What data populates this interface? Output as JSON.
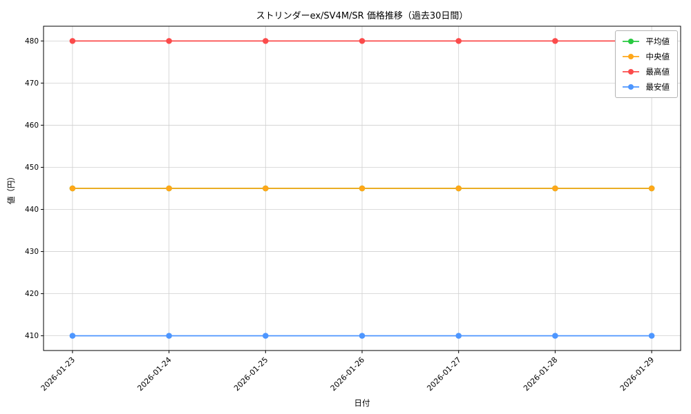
{
  "figure": {
    "background": "#ffffff"
  },
  "chart_data": {
    "type": "line",
    "title": "ストリンダーex/SV4M/SR 価格推移（過去30日間）",
    "xlabel": "日付",
    "ylabel": "値（円）",
    "x": [
      "2026-01-23",
      "2026-01-24",
      "2026-01-25",
      "2026-01-26",
      "2026-01-27",
      "2026-01-28",
      "2026-01-29"
    ],
    "series": [
      {
        "name": "平均値",
        "color": "#28c940",
        "values": [
          445,
          445,
          445,
          445,
          445,
          445,
          445
        ]
      },
      {
        "name": "中央値",
        "color": "#ffa719",
        "values": [
          445,
          445,
          445,
          445,
          445,
          445,
          445
        ]
      },
      {
        "name": "最高値",
        "color": "#fb4b4b",
        "values": [
          480,
          480,
          480,
          480,
          480,
          480,
          480
        ]
      },
      {
        "name": "最安値",
        "color": "#4d96ff",
        "values": [
          410,
          410,
          410,
          410,
          410,
          410,
          410
        ]
      }
    ],
    "ylim": [
      406.5,
      483.5
    ],
    "yticks": [
      410,
      420,
      430,
      440,
      450,
      460,
      470,
      480
    ],
    "grid": true,
    "grid_color": "#cfcfcf",
    "legend_position": "upper right",
    "x_tick_rotation": 45
  }
}
